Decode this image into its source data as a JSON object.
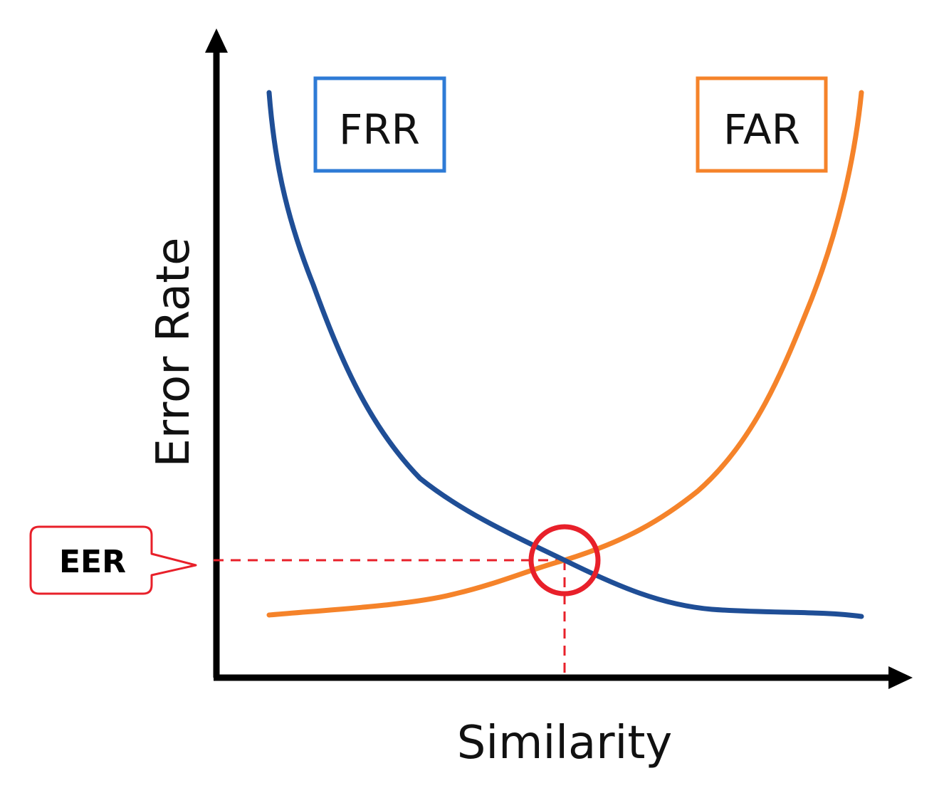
{
  "axes": {
    "x_title": "Similarity",
    "y_title": "Error Rate"
  },
  "curves": [
    {
      "id": "frr",
      "label": "FRR",
      "color": "#1f4e96",
      "box_color": "#2e7bd6"
    },
    {
      "id": "far",
      "label": "FAR",
      "color": "#f5832a",
      "box_color": "#f5832a"
    }
  ],
  "eer": {
    "label": "EER",
    "color": "#e8202a"
  }
}
